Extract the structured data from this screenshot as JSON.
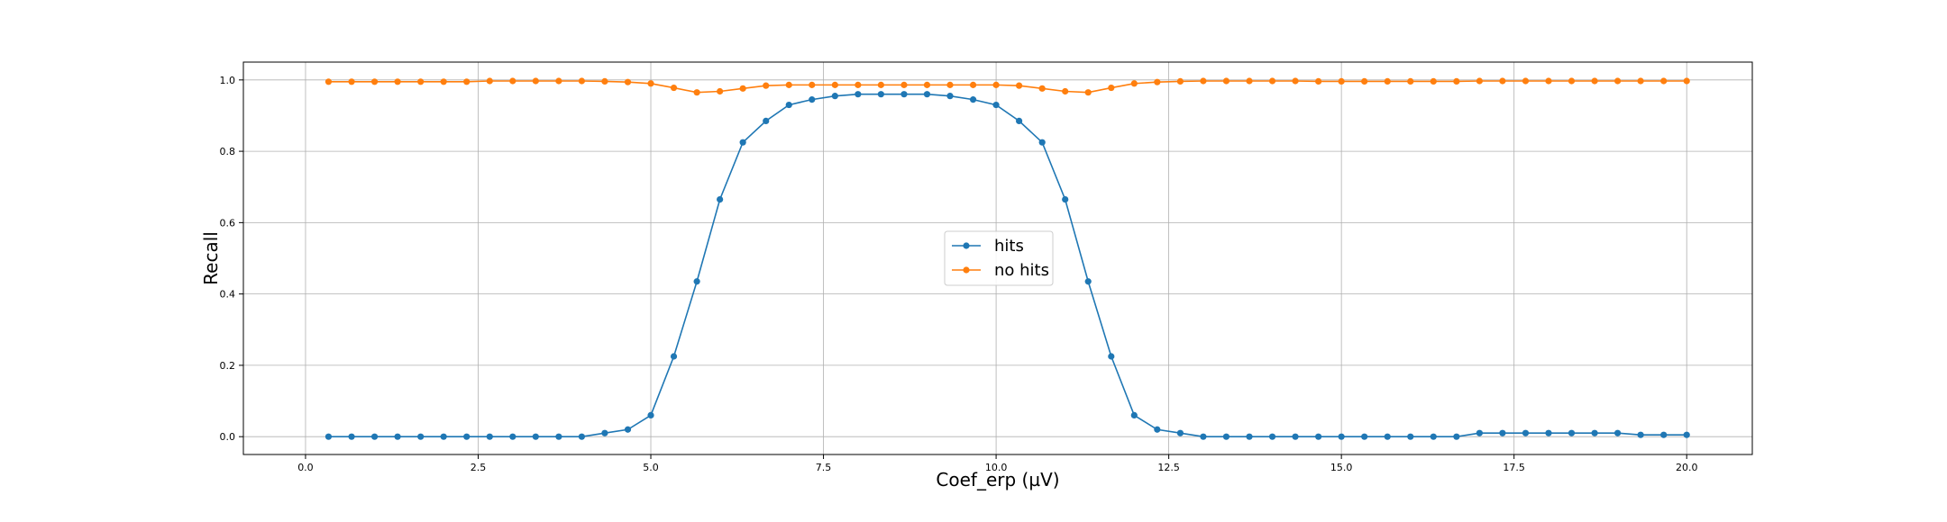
{
  "chart_data": {
    "type": "line",
    "title": "",
    "xlabel": "Coef_erp (µV)",
    "ylabel": "Recall",
    "xlim": [
      -0.9,
      20.95
    ],
    "ylim": [
      -0.05,
      1.05
    ],
    "xticks": [
      0.0,
      2.5,
      5.0,
      7.5,
      10.0,
      12.5,
      15.0,
      17.5,
      20.0
    ],
    "xtick_labels": [
      "0.0",
      "2.5",
      "5.0",
      "7.5",
      "10.0",
      "12.5",
      "15.0",
      "17.5",
      "20.0"
    ],
    "yticks": [
      0.0,
      0.2,
      0.4,
      0.6,
      0.8,
      1.0
    ],
    "ytick_labels": [
      "0.0",
      "0.2",
      "0.4",
      "0.6",
      "0.8",
      "1.0"
    ],
    "grid": true,
    "legend_position": "center",
    "x": [
      0.333,
      0.667,
      1.0,
      1.333,
      1.667,
      2.0,
      2.333,
      2.667,
      3.0,
      3.333,
      3.667,
      4.0,
      4.333,
      4.667,
      5.0,
      5.333,
      5.667,
      6.0,
      6.333,
      6.667,
      7.0,
      7.333,
      7.667,
      8.0,
      8.333,
      8.667,
      9.0,
      9.333,
      9.667,
      10.0,
      10.333,
      10.667,
      11.0,
      11.333,
      11.667,
      12.0,
      12.333,
      12.667,
      13.0,
      13.333,
      13.667,
      14.0,
      14.333,
      14.667,
      15.0,
      15.333,
      15.667,
      16.0,
      16.333,
      16.667,
      17.0,
      17.333,
      17.667,
      18.0,
      18.333,
      18.667,
      19.0,
      19.333,
      19.667,
      20.0
    ],
    "series": [
      {
        "name": "hits",
        "color": "#1f77b4",
        "values": [
          0.0,
          0.0,
          0.0,
          0.0,
          0.0,
          0.0,
          0.0,
          0.0,
          0.0,
          0.0,
          0.0,
          0.0,
          0.01,
          0.02,
          0.06,
          0.225,
          0.435,
          0.665,
          0.825,
          0.885,
          0.93,
          0.945,
          0.955,
          0.96,
          0.96,
          0.96,
          0.96,
          0.955,
          0.945,
          0.93,
          0.885,
          0.825,
          0.665,
          0.435,
          0.225,
          0.06,
          0.02,
          0.01,
          0.0,
          0.0,
          0.0,
          0.0,
          0.0,
          0.0,
          0.0,
          0.0,
          0.0,
          0.0,
          0.0,
          0.0,
          0.01,
          0.01,
          0.01,
          0.01,
          0.01,
          0.01,
          0.01,
          0.005,
          0.005,
          0.005
        ]
      },
      {
        "name": "no hits",
        "color": "#ff7f0e",
        "values": [
          0.995,
          0.995,
          0.995,
          0.995,
          0.995,
          0.995,
          0.995,
          0.997,
          0.997,
          0.997,
          0.997,
          0.997,
          0.996,
          0.994,
          0.99,
          0.978,
          0.965,
          0.968,
          0.976,
          0.984,
          0.986,
          0.986,
          0.986,
          0.986,
          0.986,
          0.986,
          0.986,
          0.986,
          0.986,
          0.986,
          0.984,
          0.976,
          0.968,
          0.965,
          0.978,
          0.99,
          0.994,
          0.996,
          0.997,
          0.997,
          0.997,
          0.997,
          0.997,
          0.996,
          0.996,
          0.996,
          0.996,
          0.996,
          0.996,
          0.996,
          0.997,
          0.997,
          0.997,
          0.997,
          0.997,
          0.997,
          0.997,
          0.997,
          0.997,
          0.997
        ]
      }
    ]
  }
}
